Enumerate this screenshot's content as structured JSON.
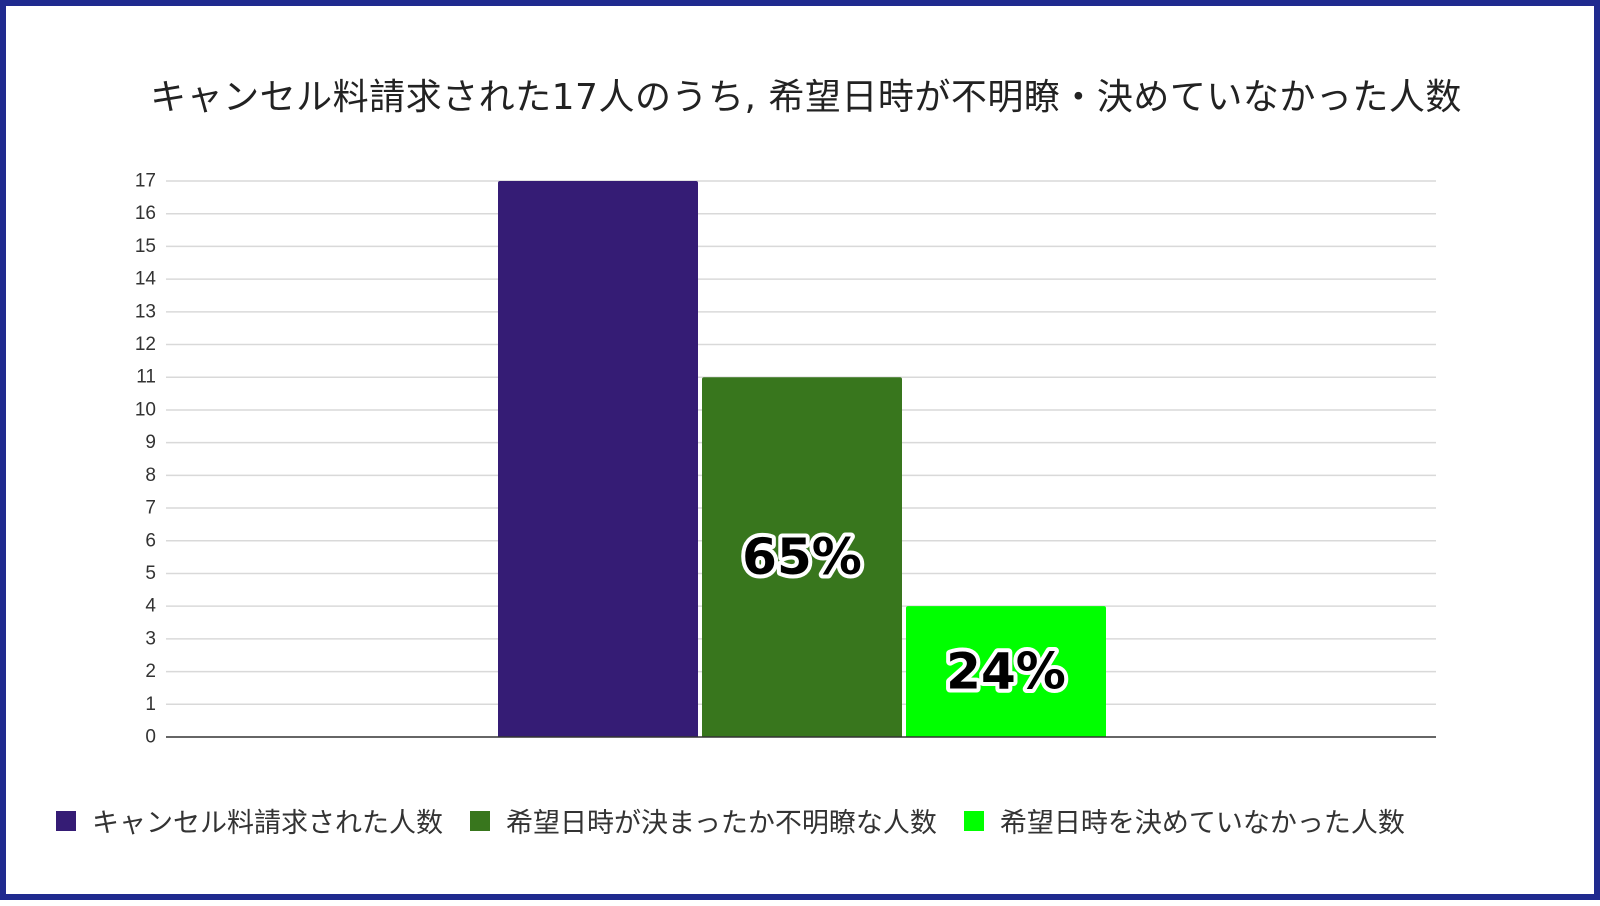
{
  "chart_data": {
    "type": "bar",
    "title": "キャンセル料請求された17人のうち, 希望日時が不明瞭・決めていなかった人数",
    "xlabel": "",
    "ylabel": "",
    "ylim": [
      0,
      17
    ],
    "yticks": [
      "0",
      "1",
      "2",
      "3",
      "4",
      "5",
      "6",
      "7",
      "8",
      "9",
      "10",
      "11",
      "12",
      "13",
      "14",
      "15",
      "16",
      "17"
    ],
    "grid": true,
    "legend_position": "bottom",
    "series": [
      {
        "name": "キャンセル料請求された人数",
        "values": [
          17
        ],
        "color": "#351c75",
        "data_label": ""
      },
      {
        "name": "希望日時が決まったか不明瞭な人数",
        "values": [
          11
        ],
        "color": "#38761d",
        "data_label": "65%"
      },
      {
        "name": "希望日時を決めていなかった人数",
        "values": [
          4
        ],
        "color": "#00ff00",
        "data_label": "24%"
      }
    ]
  }
}
